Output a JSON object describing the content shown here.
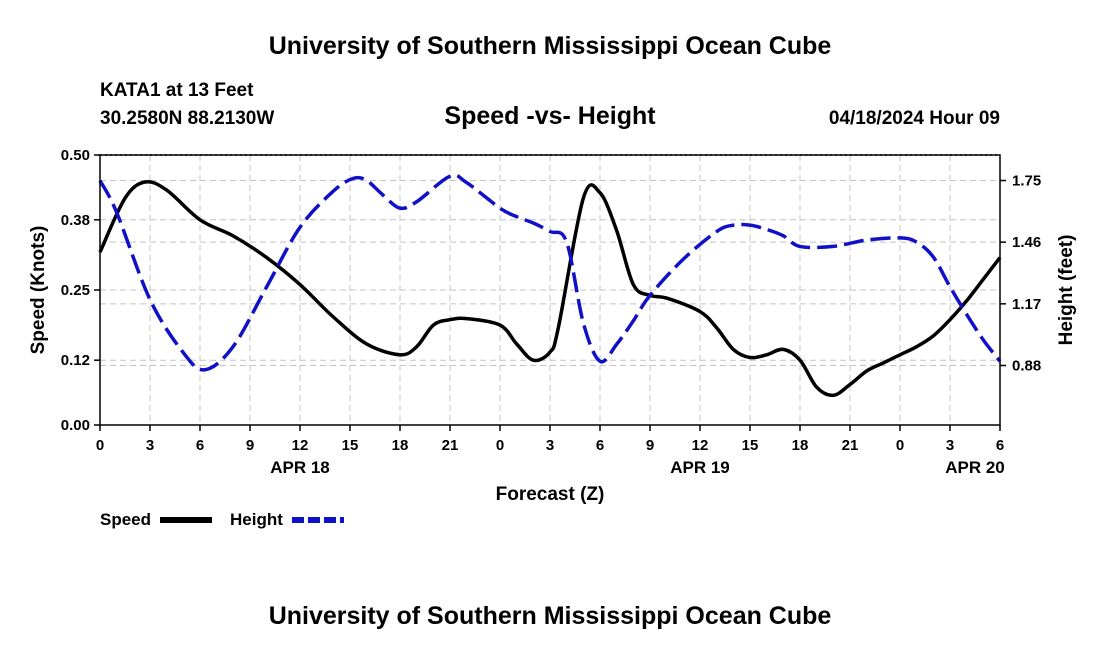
{
  "chart_data": {
    "type": "line",
    "title": "University of Southern Mississippi Ocean Cube",
    "footer_title": "University of Southern Mississippi Ocean Cube",
    "subtitle": "Speed -vs- Height",
    "station": "KATA1 at 13 Feet",
    "location": "30.2580N  88.2130W",
    "timestamp": "04/18/2024 Hour 09",
    "xlabel": "Forecast (Z)",
    "ylabel_left": "Speed (Knots)",
    "ylabel_right": "Height (feet)",
    "x_range": [
      0,
      54
    ],
    "x_ticks": [
      0,
      3,
      6,
      9,
      12,
      15,
      18,
      21,
      24,
      27,
      30,
      33,
      36,
      39,
      42,
      45,
      48,
      51,
      54
    ],
    "x_tick_labels": [
      "0",
      "3",
      "6",
      "9",
      "12",
      "15",
      "18",
      "21",
      "0",
      "3",
      "6",
      "9",
      "12",
      "15",
      "18",
      "21",
      "0",
      "3",
      "6"
    ],
    "date_labels": [
      {
        "x": 12,
        "label": "APR 18"
      },
      {
        "x": 36,
        "label": "APR 19"
      },
      {
        "x": 52.5,
        "label": "APR 20"
      }
    ],
    "ylim_left": [
      0,
      0.5
    ],
    "left_ticks": [
      0.0,
      0.12,
      0.25,
      0.38,
      0.5
    ],
    "left_tick_labels": [
      "0.00",
      "0.12",
      "0.25",
      "0.38",
      "0.50"
    ],
    "ylim_right": [
      0.6,
      1.87
    ],
    "right_ticks": [
      0.88,
      1.17,
      1.46,
      1.75
    ],
    "right_tick_labels": [
      "0.88",
      "1.17",
      "1.46",
      "1.75"
    ],
    "grid": true,
    "series": [
      {
        "name": "Speed",
        "axis": "left",
        "color": "#000000",
        "dash": "solid",
        "x": [
          0,
          1.5,
          2.7,
          4,
          6,
          8,
          10,
          12,
          14,
          16,
          18,
          19,
          20,
          21,
          22,
          24,
          25,
          26,
          27,
          27.5,
          29,
          30,
          31,
          32,
          33,
          34,
          36,
          37,
          38,
          39,
          40,
          41,
          42,
          43,
          44,
          45,
          46,
          47,
          48,
          49,
          50,
          51,
          52,
          53,
          54
        ],
        "values": [
          0.32,
          0.42,
          0.45,
          0.435,
          0.38,
          0.35,
          0.31,
          0.26,
          0.2,
          0.15,
          0.13,
          0.145,
          0.185,
          0.195,
          0.197,
          0.185,
          0.15,
          0.12,
          0.135,
          0.18,
          0.42,
          0.43,
          0.36,
          0.26,
          0.24,
          0.235,
          0.21,
          0.18,
          0.14,
          0.125,
          0.13,
          0.14,
          0.12,
          0.07,
          0.055,
          0.075,
          0.1,
          0.115,
          0.13,
          0.145,
          0.165,
          0.195,
          0.23,
          0.27,
          0.31
        ]
      },
      {
        "name": "Height",
        "axis": "right",
        "color": "#1010c8",
        "dash": "dashed",
        "x": [
          0,
          1,
          3,
          5,
          6.3,
          8,
          10,
          12,
          14,
          15.2,
          16,
          17,
          18,
          19,
          21,
          22,
          24,
          25,
          26,
          27,
          28,
          29,
          30,
          31,
          32,
          33,
          35,
          37,
          38,
          39,
          40,
          41,
          42,
          44,
          46,
          48,
          49,
          50,
          51,
          52,
          53,
          54
        ],
        "values": [
          1.75,
          1.6,
          1.19,
          0.94,
          0.86,
          0.97,
          1.25,
          1.53,
          1.7,
          1.76,
          1.75,
          1.68,
          1.62,
          1.65,
          1.77,
          1.74,
          1.62,
          1.58,
          1.55,
          1.51,
          1.46,
          1.08,
          0.9,
          0.98,
          1.09,
          1.21,
          1.38,
          1.51,
          1.54,
          1.54,
          1.52,
          1.49,
          1.44,
          1.44,
          1.47,
          1.48,
          1.46,
          1.39,
          1.25,
          1.12,
          1.0,
          0.9
        ]
      }
    ],
    "legend": [
      {
        "label": "Speed",
        "color": "#000000",
        "dash": "solid"
      },
      {
        "label": "Height",
        "color": "#1010c8",
        "dash": "dashed"
      }
    ],
    "legend_position": "bottom-left"
  }
}
